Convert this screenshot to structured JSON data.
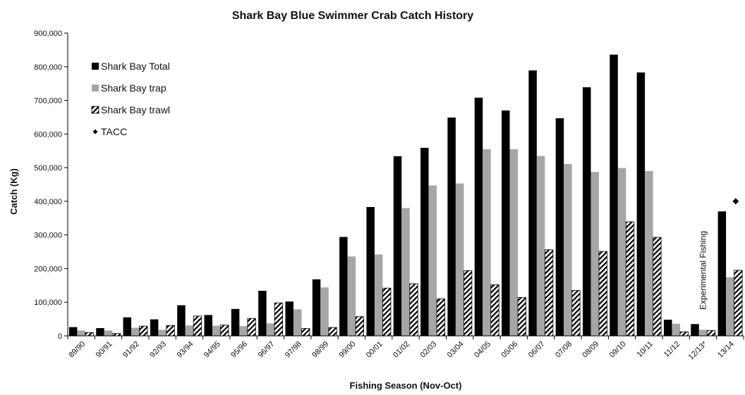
{
  "chart_data": {
    "type": "bar",
    "title": "Shark Bay Blue Swimmer Crab Catch History",
    "xlabel": "Fishing Season (Nov-Oct)",
    "ylabel": "Catch (Kg)",
    "ylim": [
      0,
      900000
    ],
    "yticks": [
      0,
      100000,
      200000,
      300000,
      400000,
      500000,
      600000,
      700000,
      800000,
      900000
    ],
    "ytick_labels": [
      "0",
      "100,000",
      "200,000",
      "300,000",
      "400,000",
      "500,000",
      "600,000",
      "700,000",
      "800,000",
      "900,000"
    ],
    "grid": false,
    "legend_position": "top-left",
    "categories": [
      "89/90",
      "90/91",
      "91/92",
      "92/93",
      "93/94",
      "94/95",
      "95/96",
      "96/97",
      "97/98",
      "98/99",
      "99/00",
      "00/01",
      "01/02",
      "02/03",
      "03/04",
      "04/05",
      "05/06",
      "06/07",
      "07/08",
      "08/09",
      "09/10",
      "10/11",
      "11/12",
      "12/13*",
      "13/14"
    ],
    "series": [
      {
        "name": "Shark Bay Total",
        "color": "#000000",
        "pattern": "solid",
        "values": [
          26000,
          23000,
          55000,
          49000,
          91000,
          62000,
          80000,
          134000,
          102000,
          168000,
          294000,
          383000,
          534000,
          559000,
          649000,
          708000,
          670000,
          789000,
          647000,
          739000,
          836000,
          783000,
          48000,
          35000,
          370000
        ]
      },
      {
        "name": "Shark Bay trap",
        "color": "#a6a6a6",
        "pattern": "solid",
        "values": [
          16000,
          16000,
          24000,
          18000,
          31000,
          30000,
          29000,
          37000,
          79000,
          144000,
          236000,
          242000,
          380000,
          447000,
          453000,
          555000,
          555000,
          535000,
          511000,
          487000,
          499000,
          490000,
          36000,
          18000,
          174000
        ]
      },
      {
        "name": "Shark Bay trawl",
        "color": "#000000",
        "pattern": "hatch",
        "values": [
          10000,
          7000,
          29000,
          31000,
          59000,
          32000,
          52000,
          98000,
          22000,
          25000,
          57000,
          142000,
          155000,
          110000,
          194000,
          152000,
          114000,
          256000,
          135000,
          251000,
          339000,
          293000,
          12000,
          16000,
          195000
        ]
      },
      {
        "name": "TACC",
        "color": "#000000",
        "marker": "diamond",
        "points": [
          {
            "x": "13/14",
            "y": 400000
          }
        ]
      }
    ],
    "annotations": [
      {
        "text": "Experimental Fishing",
        "near": "12/13*",
        "orientation": "vertical"
      }
    ]
  }
}
